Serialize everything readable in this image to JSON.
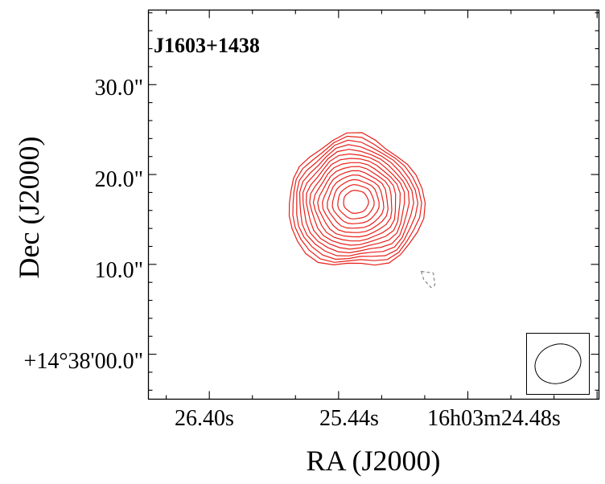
{
  "chart_data": {
    "type": "contour",
    "title": "J1603+1438",
    "xlabel": "RA (J2000)",
    "ylabel": "Dec (J2000)",
    "x_ticks": [
      "26.40s",
      "25.44s",
      "16h03m24.48s"
    ],
    "y_ticks": [
      "30.0\"",
      "20.0\"",
      "10.0\"",
      "+14°38'00.0\""
    ],
    "xlim_arcsec": [
      -20.3,
      27.8
    ],
    "ylim_arcsec": [
      -5.0,
      38.3
    ],
    "x_tick_positions_arcsec": [
      -13.8,
      0.0,
      13.8
    ],
    "y_tick_positions_arcsec": [
      30.0,
      20.0,
      10.0,
      0.0
    ],
    "source": {
      "center_arcsec": [
        1.7,
        16.8
      ],
      "positive_contour_levels": 14,
      "outer_contour_extent_arcsec": {
        "x": [
          -6.5,
          8.0
        ],
        "y": [
          9.2,
          23.8
        ]
      },
      "color": "#e8201a"
    },
    "negative_contour": {
      "center_arcsec": [
        9.6,
        8.5
      ],
      "style": "dashed",
      "color": "#888888"
    },
    "beam": {
      "major_arcsec": 5.5,
      "minor_arcsec": 4.2,
      "position_angle_deg": -20
    },
    "grid": false,
    "legend": "none"
  }
}
